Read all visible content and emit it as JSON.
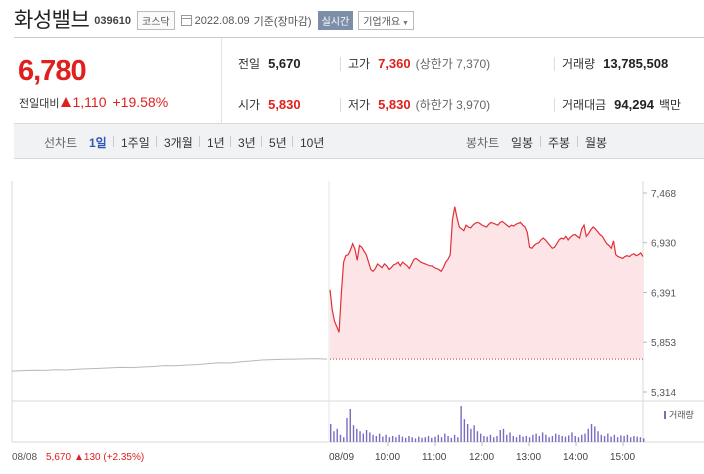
{
  "header": {
    "stock_name": "화성밸브",
    "code": "039610",
    "market": "코스닥",
    "date": "2022.08.09",
    "basis": "기준(장마감)",
    "realtime_label": "실시간",
    "company_info_label": "기업개요"
  },
  "quote": {
    "price": "6,780",
    "change_label": "전일대비",
    "change_value": "1,110",
    "change_pct": "+19.58%",
    "prev_close_label": "전일",
    "prev_close": "5,670",
    "high_label": "고가",
    "high": "7,360",
    "upper_limit": "(상한가 7,370)",
    "volume_label": "거래량",
    "volume": "13,785,508",
    "open_label": "시가",
    "open": "5,830",
    "low_label": "저가",
    "low": "5,830",
    "lower_limit": "(하한가 3,970)",
    "amount_label": "거래대금",
    "amount": "94,294",
    "amount_unit": "백만",
    "up_color": "#e0201e"
  },
  "tabs": {
    "line_chart_label": "선차트",
    "periods": [
      "1일",
      "1주일",
      "3개월",
      "1년",
      "3년",
      "5년",
      "10년"
    ],
    "active_period": "1일",
    "candle_label": "봉차트",
    "candles": [
      "일봉",
      "주봉",
      "월봉"
    ]
  },
  "chart_data": {
    "type": "line",
    "title": "",
    "price_ticks": [
      7468,
      6930,
      6391,
      5853,
      5314
    ],
    "price_tick_labels": [
      "7,468",
      "6,930",
      "6,391",
      "5,853",
      "5,314"
    ],
    "ylim": [
      5314,
      7468
    ],
    "x_labels": [
      "08/08",
      "08/09",
      "10:00",
      "11:00",
      "12:00",
      "13:00",
      "14:00",
      "15:00"
    ],
    "prev_close_line": 5670,
    "prev_day": {
      "name": "08/08",
      "values": [
        5540,
        5545,
        5550,
        5548,
        5555,
        5552,
        5560,
        5565,
        5570,
        5575,
        5580,
        5578,
        5585,
        5590,
        5600,
        5598,
        5605,
        5610,
        5620,
        5630,
        5628,
        5640,
        5650,
        5660,
        5665,
        5668,
        5670,
        5672,
        5675,
        5670
      ]
    },
    "today": {
      "name": "08/09",
      "values": [
        6420,
        6200,
        6080,
        6020,
        5960,
        6380,
        6720,
        6790,
        6800,
        6850,
        6920,
        6860,
        6740,
        6900,
        6880,
        6840,
        6800,
        6720,
        6640,
        6620,
        6650,
        6700,
        6680,
        6660,
        6700,
        6680,
        6640,
        6660,
        6690,
        6700,
        6720,
        6680,
        6720,
        6700,
        6680,
        6650,
        6700,
        6750,
        6760,
        6740,
        6720,
        6710,
        6700,
        6690,
        6680,
        6680,
        6660,
        6650,
        6640,
        6620,
        6660,
        6720,
        6750,
        6800,
        7180,
        7320,
        7200,
        7100,
        7080,
        7060,
        7120,
        7100,
        7090,
        7120,
        7140,
        7150,
        7140,
        7120,
        7110,
        7100,
        7130,
        7150,
        7140,
        7130,
        7120,
        7150,
        7160,
        7140,
        7120,
        7100,
        7120,
        7110,
        7130,
        7140,
        7150,
        7120,
        7100,
        7040,
        6880,
        6870,
        6900,
        6920,
        6930,
        6960,
        6980,
        6960,
        6930,
        6900,
        6870,
        6880,
        6920,
        6960,
        6980,
        6970,
        7000,
        6960,
        6990,
        7010,
        7020,
        7000,
        6980,
        7080,
        7120,
        7000,
        7030,
        7070,
        7100,
        7080,
        7050,
        7020,
        7000,
        6960,
        6920,
        6900,
        6870,
        6950,
        6800,
        6780,
        6770,
        6760,
        6780,
        6790,
        6780,
        6800,
        6810,
        6790,
        6800,
        6820,
        6780
      ]
    },
    "volume": {
      "name": "거래량",
      "values": [
        30,
        18,
        22,
        12,
        8,
        40,
        55,
        28,
        22,
        18,
        14,
        20,
        16,
        12,
        10,
        14,
        9,
        12,
        8,
        10,
        8,
        12,
        9,
        7,
        10,
        8,
        6,
        9,
        7,
        8,
        10,
        7,
        9,
        12,
        8,
        14,
        10,
        7,
        12,
        8,
        60,
        38,
        30,
        22,
        28,
        18,
        14,
        10,
        9,
        12,
        8,
        10,
        20,
        22,
        12,
        16,
        10,
        8,
        12,
        9,
        10,
        8,
        12,
        14,
        10,
        16,
        12,
        8,
        10,
        14,
        12,
        10,
        9,
        11,
        16,
        10,
        8,
        12,
        14,
        22,
        30,
        26,
        18,
        12,
        10,
        14,
        9,
        12,
        8,
        11,
        10,
        12,
        8,
        10,
        9,
        8,
        6
      ]
    },
    "volume_legend": "거래량",
    "grid": true
  }
}
